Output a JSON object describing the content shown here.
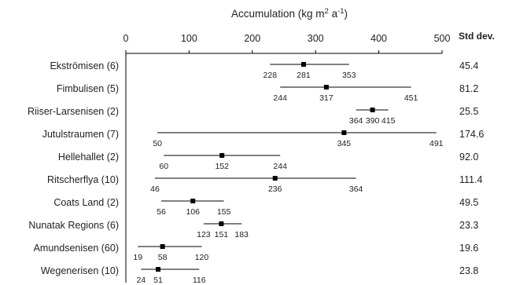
{
  "chart_data": {
    "type": "range",
    "title": "Accumulation (kg m",
    "title_sup1": "2",
    "title_mid": " a",
    "title_sup2": "-1",
    "title_end": ")",
    "xlim": [
      0,
      500
    ],
    "x_ticks": [
      "0",
      "100",
      "200",
      "300",
      "400",
      "500"
    ],
    "std_header": "Std dev.",
    "rows": [
      {
        "label": "Ekströmisen (6)",
        "min": 228,
        "mean": 281,
        "max": 353,
        "min_label": "228",
        "mean_label": "281",
        "max_label": "353",
        "std": "45.4"
      },
      {
        "label": "Fimbulisen (5)",
        "min": 244,
        "mean": 317,
        "max": 451,
        "min_label": "244",
        "mean_label": "317",
        "max_label": "451",
        "std": "81.2"
      },
      {
        "label": "Riiser-Larsenisen (2)",
        "min": 364,
        "mean": 390,
        "max": 415,
        "min_label": "364",
        "mean_label": "390",
        "max_label": "415",
        "std": "25.5"
      },
      {
        "label": "Jutulstraumen (7)",
        "min": 50,
        "mean": 345,
        "max": 491,
        "min_label": "50",
        "mean_label": "345",
        "max_label": "491",
        "std": "174.6"
      },
      {
        "label": "Hellehallet (2)",
        "min": 60,
        "mean": 152,
        "max": 244,
        "min_label": "60",
        "mean_label": "152",
        "max_label": "244",
        "std": "92.0"
      },
      {
        "label": "Ritscherflya (10)",
        "min": 46,
        "mean": 236,
        "max": 364,
        "min_label": "46",
        "mean_label": "236",
        "max_label": "364",
        "std": "111.4"
      },
      {
        "label": "Coats Land (2)",
        "min": 56,
        "mean": 106,
        "max": 155,
        "min_label": "56",
        "mean_label": "106",
        "max_label": "155",
        "std": "49.5"
      },
      {
        "label": "Nunatak Regions (6)",
        "min": 123,
        "mean": 151,
        "max": 183,
        "min_label": "123",
        "mean_label": "151",
        "max_label": "183",
        "std": "23.3"
      },
      {
        "label": "Amundsenisen (60)",
        "min": 19,
        "mean": 58,
        "max": 120,
        "min_label": "19",
        "mean_label": "58",
        "max_label": "120",
        "std": "19.6"
      },
      {
        "label": "Wegenerisen (10)",
        "min": 24,
        "mean": 51,
        "max": 116,
        "min_label": "24",
        "mean_label": "51",
        "max_label": "116",
        "std": "23.8"
      }
    ]
  }
}
